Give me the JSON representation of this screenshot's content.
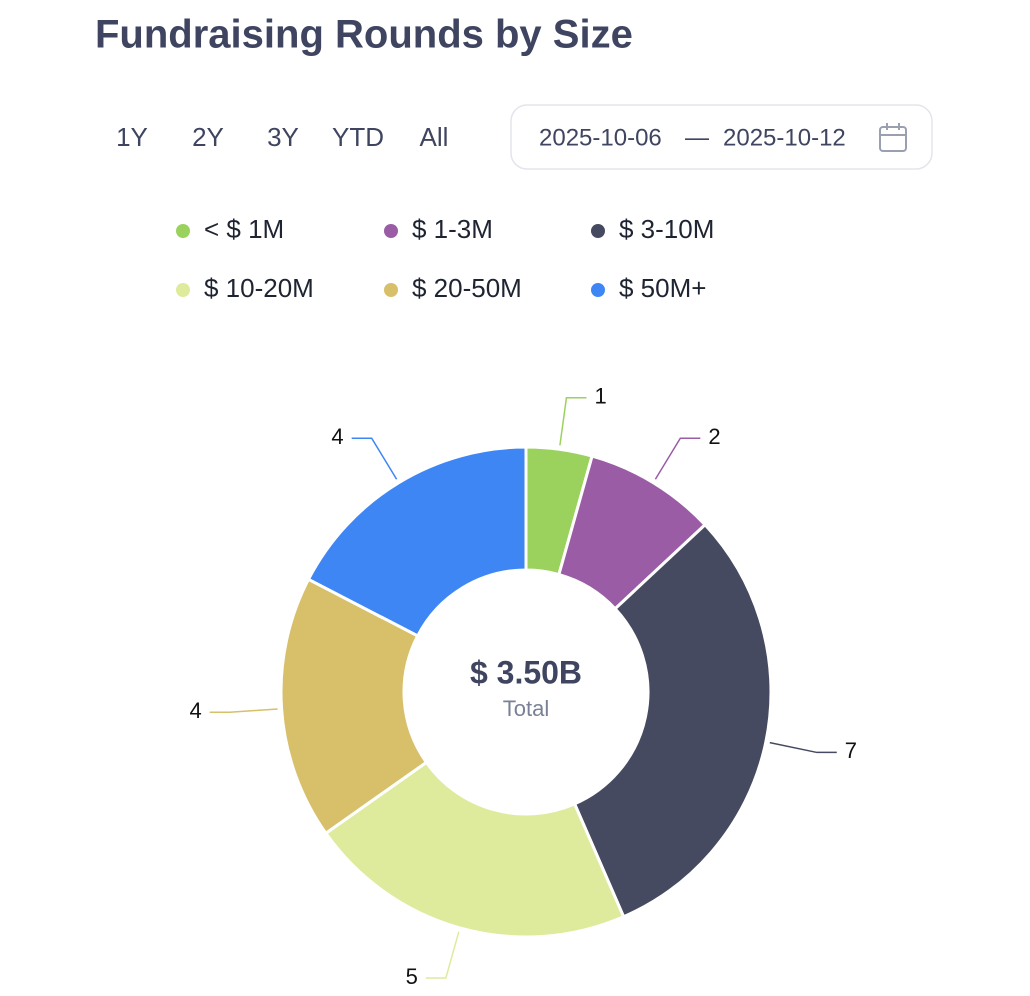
{
  "header": {
    "title": "Fundraising Rounds by Size"
  },
  "range_buttons": [
    "1Y",
    "2Y",
    "3Y",
    "YTD",
    "All"
  ],
  "date_range": {
    "start": "2025-10-06",
    "separator": "—",
    "end": "2025-10-12"
  },
  "chart_data": {
    "type": "pie",
    "categories": [
      "< $ 1M",
      "$ 1-3M",
      "$ 3-10M",
      "$ 10-20M",
      "$ 20-50M",
      "$ 50M+"
    ],
    "values": [
      1,
      2,
      7,
      5,
      4,
      4
    ],
    "colors": [
      "#9bd25e",
      "#9b5ca6",
      "#454a60",
      "#deeb9c",
      "#d8bf6a",
      "#3f86f5"
    ],
    "center_value": "$ 3.50B",
    "center_label": "Total"
  }
}
